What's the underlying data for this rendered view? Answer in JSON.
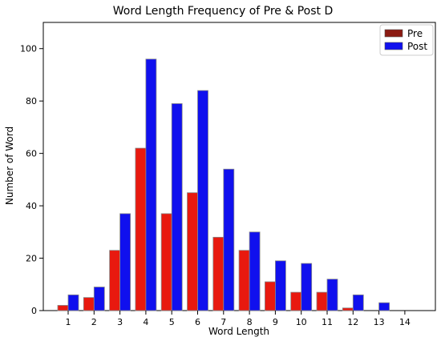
{
  "chart_data": {
    "type": "bar",
    "title": "Word Length Frequency of Pre & Post D",
    "xlabel": "Word Length",
    "ylabel": "Number of Word",
    "categories": [
      "1",
      "2",
      "3",
      "4",
      "5",
      "6",
      "7",
      "8",
      "9",
      "10",
      "11",
      "12",
      "13",
      "14"
    ],
    "series": [
      {
        "name": "Pre",
        "color": "#e8190f",
        "values": [
          2,
          5,
          23,
          62,
          37,
          45,
          28,
          23,
          11,
          7,
          7,
          1,
          0,
          0
        ]
      },
      {
        "name": "Post",
        "color": "#1010ee",
        "values": [
          6,
          9,
          37,
          96,
          79,
          84,
          54,
          30,
          19,
          18,
          12,
          6,
          3,
          0
        ]
      }
    ],
    "ylim": [
      0,
      110
    ],
    "yticks": [
      0,
      20,
      40,
      60,
      80,
      100
    ],
    "grid": false,
    "legend_position": "top-right"
  }
}
